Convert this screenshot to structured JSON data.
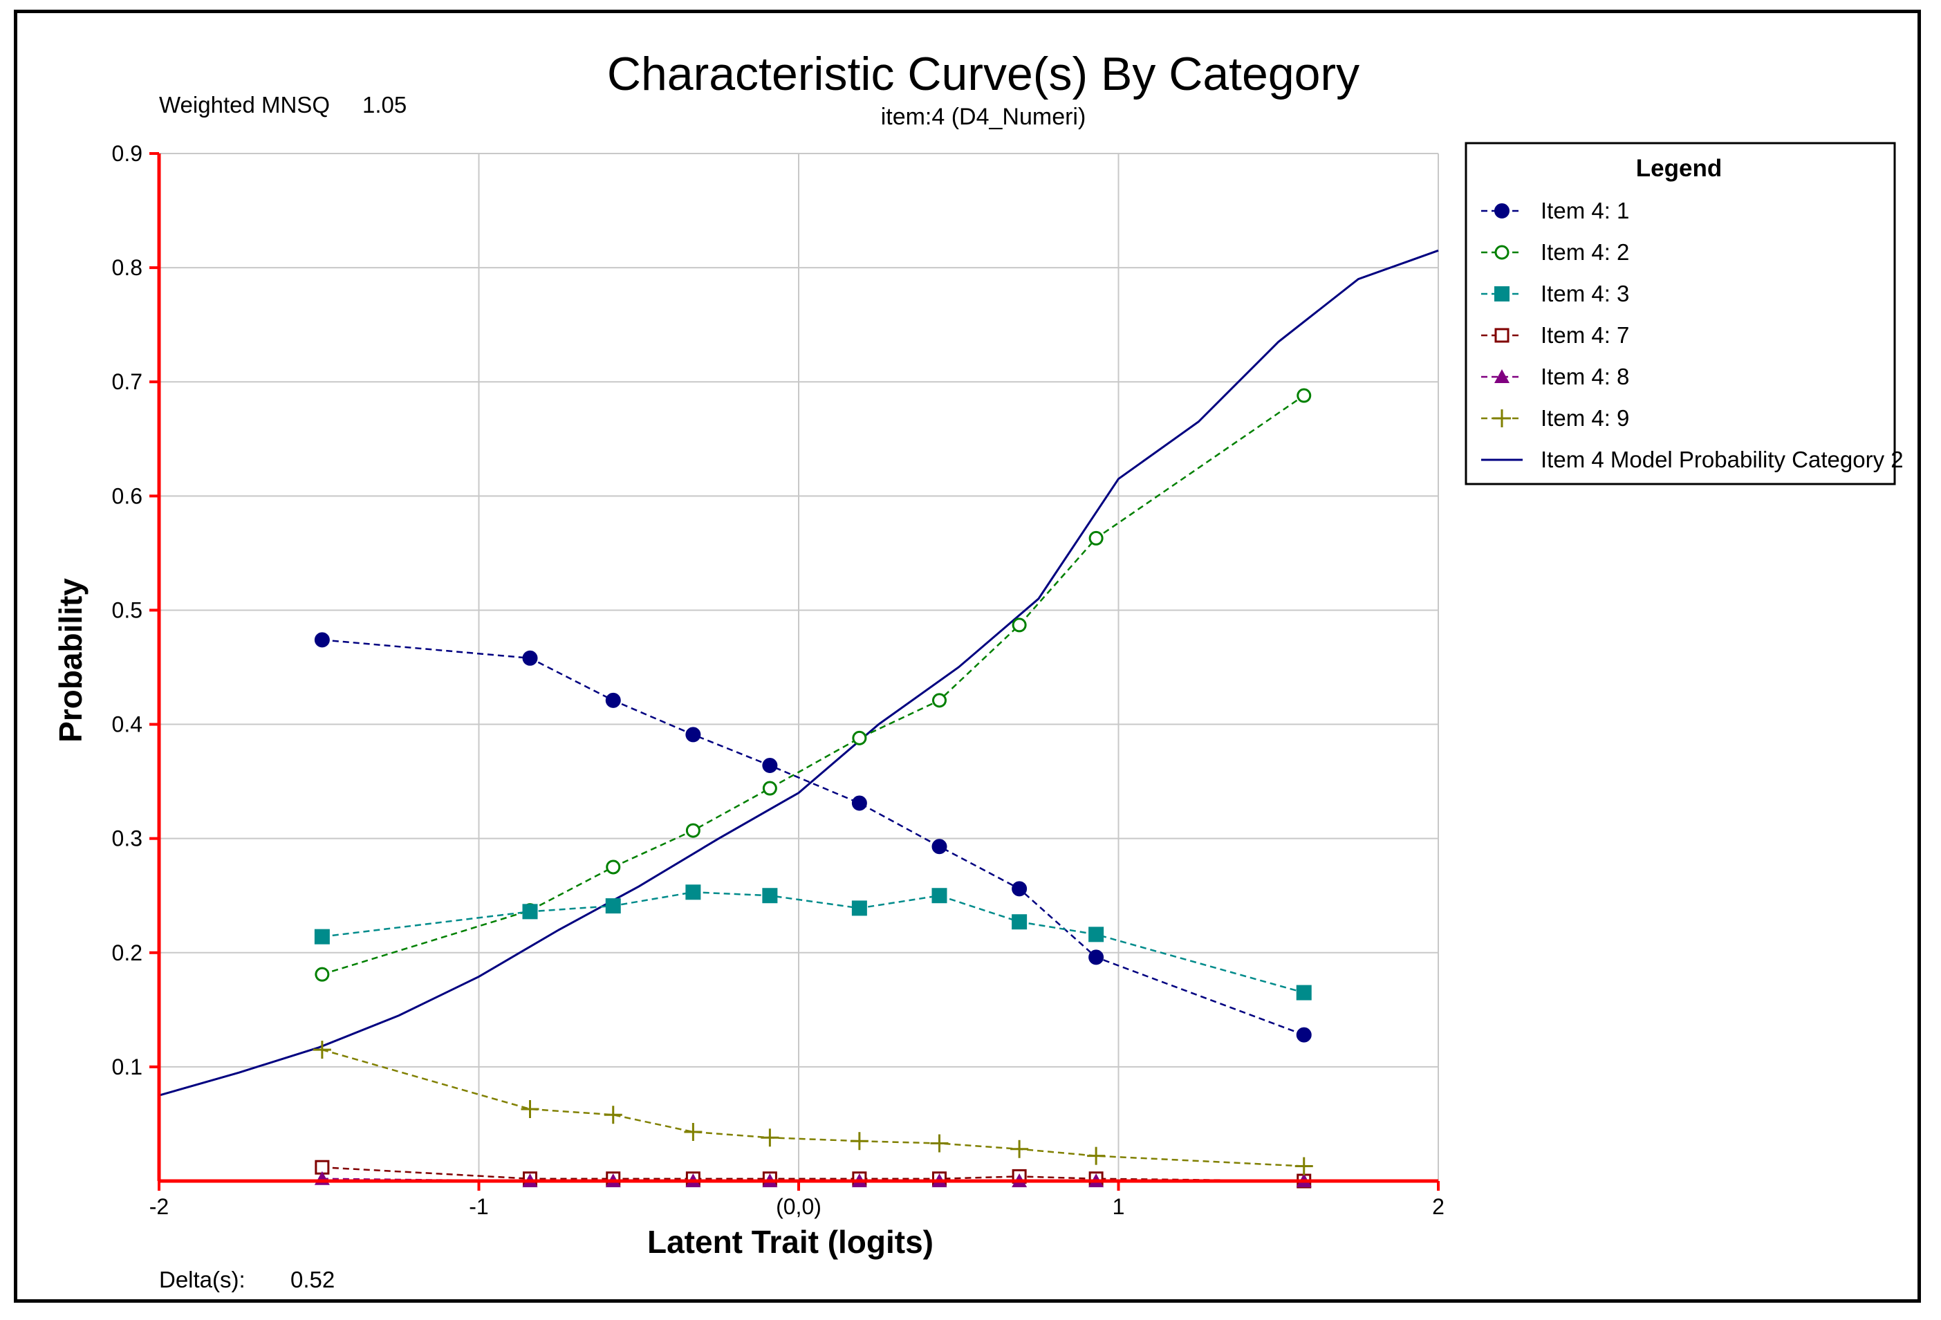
{
  "chart_data": {
    "type": "line",
    "title": "Characteristic Curve(s) By Category",
    "subtitle": "item:4 (D4_Numeri)",
    "weighted_mnsq_label": "Weighted MNSQ",
    "weighted_mnsq_value": "1.05",
    "delta_label": "Delta(s):",
    "delta_value": "0.52",
    "xlabel": "Latent Trait (logits)",
    "ylabel": "Probability",
    "xlim": [
      -2,
      2
    ],
    "ylim": [
      0,
      0.9
    ],
    "x_ticks": [
      {
        "value": -2,
        "label": "-2"
      },
      {
        "value": -1,
        "label": "-1"
      },
      {
        "value": 0,
        "label": "(0,0)"
      },
      {
        "value": 1,
        "label": "1"
      },
      {
        "value": 2,
        "label": "2"
      }
    ],
    "y_ticks": [
      {
        "value": 0.1,
        "label": "0.1"
      },
      {
        "value": 0.2,
        "label": "0.2"
      },
      {
        "value": 0.3,
        "label": "0.3"
      },
      {
        "value": 0.4,
        "label": "0.4"
      },
      {
        "value": 0.5,
        "label": "0.5"
      },
      {
        "value": 0.6,
        "label": "0.6"
      },
      {
        "value": 0.7,
        "label": "0.7"
      },
      {
        "value": 0.8,
        "label": "0.8"
      },
      {
        "value": 0.9,
        "label": "0.9"
      }
    ],
    "grid": true,
    "legend_title": "Legend",
    "x": [
      -1.49,
      -0.84,
      -0.58,
      -0.33,
      -0.09,
      0.19,
      0.44,
      0.69,
      0.93,
      1.58
    ],
    "series": [
      {
        "name": "Item 4: 1",
        "color": "#000080",
        "marker": "filled-circle",
        "values": [
          0.474,
          0.458,
          0.421,
          0.391,
          0.364,
          0.331,
          0.293,
          0.256,
          0.196,
          0.128
        ]
      },
      {
        "name": "Item 4: 2",
        "color": "#008000",
        "marker": "open-circle",
        "values": [
          0.181,
          0.237,
          0.275,
          0.307,
          0.344,
          0.388,
          0.421,
          0.487,
          0.563,
          0.688
        ]
      },
      {
        "name": "Item 4: 3",
        "color": "#008B8B",
        "marker": "filled-square",
        "values": [
          0.214,
          0.236,
          0.241,
          0.253,
          0.25,
          0.239,
          0.25,
          0.227,
          0.216,
          0.165
        ]
      },
      {
        "name": "Item 4: 7",
        "color": "#800000",
        "marker": "open-square",
        "values": [
          0.012,
          0.002,
          0.002,
          0.002,
          0.002,
          0.002,
          0.002,
          0.004,
          0.002,
          0.0
        ]
      },
      {
        "name": "Item 4: 8",
        "color": "#800080",
        "marker": "triangle",
        "values": [
          0.002,
          0.0,
          0.0,
          0.0,
          0.0,
          0.0,
          0.0,
          0.0,
          0.0,
          0.0
        ]
      },
      {
        "name": "Item 4: 9",
        "color": "#808000",
        "marker": "plus",
        "values": [
          0.115,
          0.063,
          0.058,
          0.043,
          0.038,
          0.035,
          0.033,
          0.028,
          0.022,
          0.013
        ]
      }
    ],
    "model_curve": {
      "name": "Item 4 Model Probability Category 2",
      "color": "#000080",
      "x": [
        -2.0,
        -1.75,
        -1.5,
        -1.25,
        -1.0,
        -0.75,
        -0.5,
        -0.25,
        0.0,
        0.25,
        0.5,
        0.75,
        1.0,
        1.25,
        1.5,
        1.75,
        2.0
      ],
      "values": [
        0.075,
        0.095,
        0.117,
        0.145,
        0.179,
        0.22,
        0.258,
        0.3,
        0.34,
        0.4,
        0.45,
        0.51,
        0.615,
        0.665,
        0.735,
        0.79,
        0.815
      ]
    },
    "legend_position": "right"
  },
  "colors": {
    "axis": "#FF0000",
    "grid": "#C8C8C8"
  }
}
